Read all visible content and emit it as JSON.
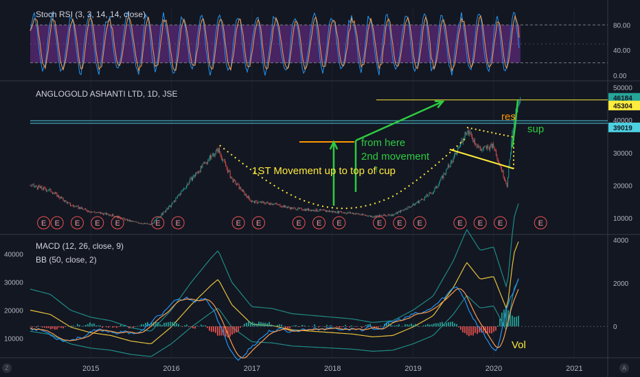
{
  "panes": {
    "stoch_label": "Stoch RSI (3, 3, 14, 14, close)",
    "main_label": "ANGLOGOLD ASHANTI LTD, 1D, JSE",
    "macd_label": "MACD (12, 26, close, 9)",
    "bb_label": "BB (50, close, 2)"
  },
  "corner_buttons": {
    "left": "Z",
    "right": "A"
  },
  "colors": {
    "background": "#131722",
    "grid": "#1e222d",
    "axis_text": "#b2b5be",
    "candle_up": "#26a69a",
    "candle_down": "#ef5350",
    "stoch_fill": "#5b2a7a",
    "stoch_k": "#2196f3",
    "stoch_d": "#ff9c4a",
    "macd_line": "#2196f3",
    "signal_line": "#ff9c4a",
    "bb_mid": "#e8c23c",
    "bb_band": "#1f8c86",
    "annotation_yellow": "#ffeb3b",
    "annotation_green": "#2ecc40",
    "annotation_orange": "#ff9800",
    "cyan_line": "#4dd0e1"
  },
  "chart_data": [
    {
      "type": "line",
      "name": "stoch_rsi",
      "yticks": [
        "80.00",
        "40.00",
        "0.00"
      ],
      "ylim": [
        0,
        100
      ],
      "bands": [
        20,
        80
      ],
      "x_range": [
        "2014-04",
        "2020-05"
      ]
    },
    {
      "type": "candlestick",
      "name": "price",
      "yticks": [
        "50000",
        "40000",
        "30000",
        "20000",
        "10000"
      ],
      "ylim": [
        5000,
        52000
      ],
      "x": [
        "2014-04",
        "2014-07",
        "2014-10",
        "2015-01",
        "2015-04",
        "2015-07",
        "2015-10",
        "2016-01",
        "2016-04",
        "2016-07",
        "2016-08",
        "2016-10",
        "2017-01",
        "2017-04",
        "2017-07",
        "2017-10",
        "2018-01",
        "2018-04",
        "2018-07",
        "2018-10",
        "2019-01",
        "2019-04",
        "2019-07",
        "2019-09",
        "2019-11",
        "2020-01",
        "2020-03",
        "2020-04",
        "2020-05"
      ],
      "values": [
        20000,
        18500,
        14000,
        12000,
        11000,
        9000,
        8000,
        14000,
        22000,
        29000,
        31000,
        22000,
        15000,
        14500,
        13000,
        12500,
        12000,
        11500,
        10500,
        11000,
        14000,
        18000,
        28000,
        37000,
        31000,
        32000,
        20000,
        40000,
        46184
      ],
      "price_labels": [
        {
          "value": 46184,
          "text": "46184",
          "bg": "#26a69a"
        },
        {
          "value": 45304,
          "text": "45304",
          "bg": "#ffeb3b"
        },
        {
          "value": 39019,
          "text": "39019",
          "bg": "#4dd0e1"
        }
      ],
      "horizontal_lines": [
        {
          "value": 46184,
          "color": "#ffeb3b"
        },
        {
          "value": 39800,
          "color": "#4dd0e1"
        },
        {
          "value": 39019,
          "color": "#4dd0e1"
        }
      ],
      "earnings_label": "E",
      "earnings_dates": [
        "2014-06",
        "2014-08",
        "2014-11",
        "2015-02",
        "2015-05",
        "2015-11",
        "2016-02",
        "2016-11",
        "2017-02",
        "2017-08",
        "2017-11",
        "2018-02",
        "2018-08",
        "2018-11",
        "2019-02",
        "2019-08",
        "2019-11",
        "2020-02",
        "2020-08"
      ]
    },
    {
      "type": "line",
      "name": "macd_bb",
      "yticks_left": [
        "40000",
        "30000",
        "20000",
        "10000"
      ],
      "yticks_right": [
        "4000",
        "2000",
        "0"
      ],
      "ylim_right": [
        -1200,
        4000
      ],
      "ylim_left": [
        5000,
        45000
      ]
    }
  ],
  "x_axis": {
    "ticks": [
      "2015",
      "2016",
      "2017",
      "2018",
      "2019",
      "2020",
      "2021"
    ]
  },
  "annotations": {
    "first_movement": "1ST Movement up to top of cup",
    "from_here": "from here",
    "second_movement": "2nd movement",
    "arrow_glyph": "↑",
    "res": "res",
    "sup": "sup",
    "vol": "Vol"
  }
}
